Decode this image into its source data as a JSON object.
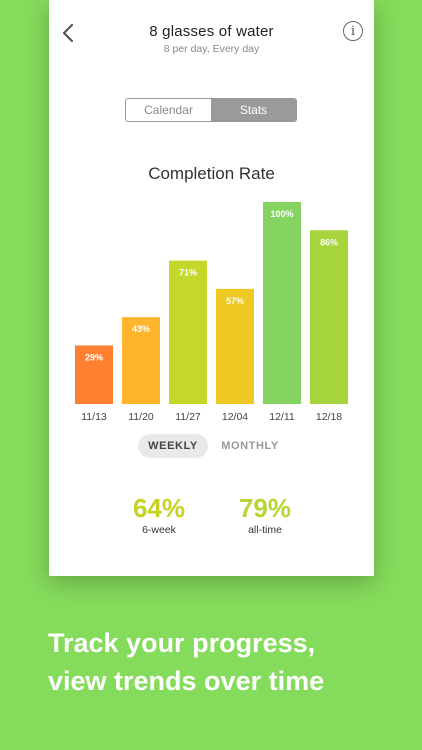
{
  "header": {
    "title": "8 glasses of water",
    "subtitle": "8 per day, Every day",
    "back_icon": "chevron-left-icon",
    "info_icon": "info-icon",
    "info_glyph": "i"
  },
  "tabs": [
    {
      "label": "Calendar",
      "active": false
    },
    {
      "label": "Stats",
      "active": true
    }
  ],
  "chart_data": {
    "type": "bar",
    "title": "Completion Rate",
    "categories": [
      "11/13",
      "11/20",
      "11/27",
      "12/04",
      "12/11",
      "12/18"
    ],
    "values": [
      29,
      43,
      71,
      57,
      100,
      86
    ],
    "value_labels": [
      "29%",
      "43%",
      "71%",
      "57%",
      "100%",
      "86%"
    ],
    "colors": [
      "#FF8031",
      "#FFB42E",
      "#C4D82C",
      "#EEC923",
      "#85D462",
      "#A6D53E"
    ],
    "ylim": [
      0,
      100
    ],
    "grid": false
  },
  "period_toggle": {
    "weekly": "WEEKLY",
    "monthly": "MONTHLY",
    "selected": "WEEKLY"
  },
  "stats": [
    {
      "value": "64%",
      "label": "6-week",
      "color": "#C7D11F"
    },
    {
      "value": "79%",
      "label": "all-time",
      "color": "#B5D634"
    }
  ],
  "tagline": {
    "line1": "Track your progress,",
    "line2": "view trends over time"
  },
  "colors": {
    "background": "#85DB5B",
    "card": "#FFFFFF"
  }
}
